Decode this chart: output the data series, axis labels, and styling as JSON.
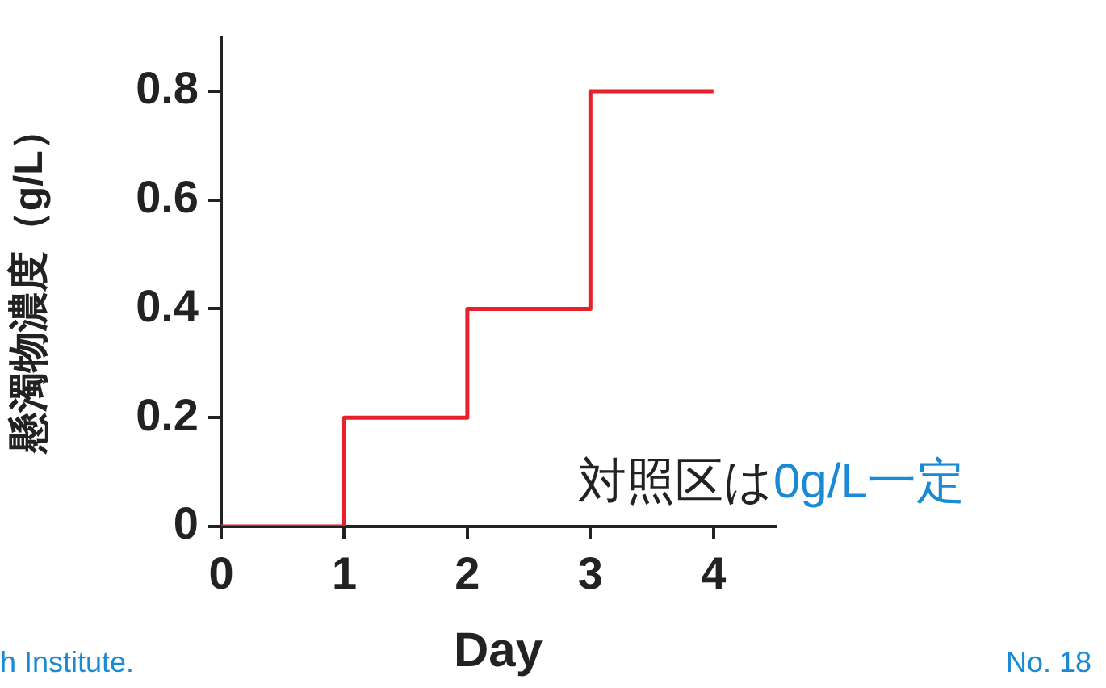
{
  "chart_data": {
    "type": "step",
    "ylabel": "懸濁物濃度（g/L）",
    "xlabel": "Day",
    "x": [
      0,
      1,
      2,
      3,
      4
    ],
    "series": [
      {
        "color": "#e8202a",
        "values": [
          0,
          0.2,
          0.4,
          0.8,
          0.8
        ]
      }
    ],
    "xlim": [
      0,
      4.5
    ],
    "xticks": [
      0,
      1,
      2,
      3,
      4
    ],
    "ylim": [
      0,
      0.9
    ],
    "yticks": [
      0,
      0.2,
      0.4,
      0.6,
      0.8
    ],
    "grid": false,
    "legend": false,
    "marker": "none",
    "line_style": "solid",
    "annotations": [
      "対照区は",
      "0g/L一定",
      "h Institute.",
      "No. 18"
    ]
  }
}
